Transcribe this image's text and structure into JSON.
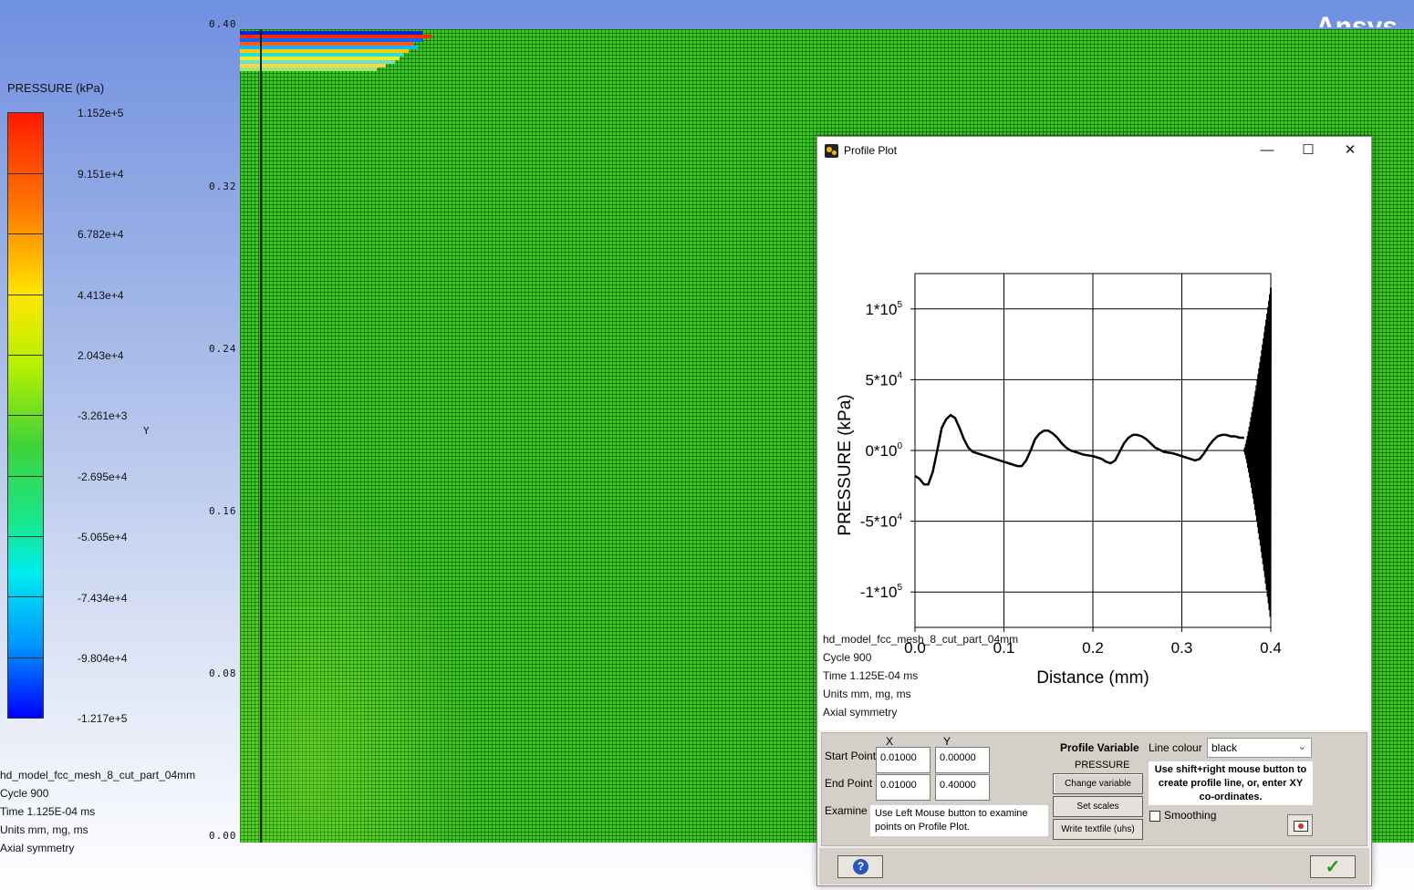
{
  "brand": "Ansys",
  "legend": {
    "title": "PRESSURE (kPa)",
    "labels": [
      "1.152e+5",
      "9.151e+4",
      "6.782e+4",
      "4.413e+4",
      "2.043e+4",
      "-3.261e+3",
      "-2.695e+4",
      "-5.065e+4",
      "-7.434e+4",
      "-9.804e+4",
      "-1.217e+5"
    ]
  },
  "model_info": {
    "name": "hd_model_fcc_mesh_8_cut_part_04mm",
    "cycle": "Cycle 900",
    "time": "Time 1.125E-04 ms",
    "units": "Units mm, mg, ms",
    "symmetry": "Axial symmetry"
  },
  "viewport": {
    "y_axis_name": "Y",
    "y_ticks": [
      "0.40",
      "0.32",
      "0.24",
      "0.16",
      "0.08",
      "0.00"
    ],
    "colors": {
      "mesh_green": "#3cc924"
    }
  },
  "profile_window": {
    "title": "Profile Plot",
    "buttons": {
      "minimize": "—",
      "maximize": "☐",
      "close": "✕"
    },
    "info": {
      "name": "hd_model_fcc_mesh_8_cut_part_04mm",
      "cycle": "Cycle 900",
      "time": "Time 1.125E-04 ms",
      "units": "Units mm, mg, ms",
      "symmetry": "Axial symmetry"
    },
    "controls": {
      "x_header": "X",
      "y_header": "Y",
      "start_label": "Start Point",
      "end_label": "End Point",
      "examine_label": "Examine",
      "start_x": "0.01000",
      "start_y": "0.00000",
      "end_x": "0.01000",
      "end_y": "0.40000",
      "examine_note": "Use Left Mouse button to examine points on Profile Plot.",
      "profile_variable_label": "Profile Variable",
      "profile_variable_value": "PRESSURE",
      "change_variable": "Change variable",
      "set_scales": "Set scales",
      "write_textfile": "Write textfile (uhs)",
      "line_colour_label": "Line colour",
      "line_colour_value": "black",
      "hint": "Use shift+right mouse button to create profile line, or, enter XY co-ordinates.",
      "smoothing_label": "Smoothing",
      "smoothing_checked": false
    },
    "help_label": "?",
    "ok_label": "✓"
  },
  "chart_data": {
    "type": "line",
    "xlabel": "Distance (mm)",
    "ylabel": "PRESSURE  (kPa)",
    "xlim": [
      0.0,
      0.4
    ],
    "ylim": [
      -125000.0,
      125000.0
    ],
    "x_ticks": [
      {
        "value": 0.0,
        "label": "0.0"
      },
      {
        "value": 0.1,
        "label": "0.1"
      },
      {
        "value": 0.2,
        "label": "0.2"
      },
      {
        "value": 0.3,
        "label": "0.3"
      },
      {
        "value": 0.4,
        "label": "0.4"
      }
    ],
    "y_ticks": [
      {
        "value": 100000,
        "base": "1*10",
        "exp": "5"
      },
      {
        "value": 50000,
        "base": "5*10",
        "exp": "4"
      },
      {
        "value": 0,
        "base": "0*10",
        "exp": "0"
      },
      {
        "value": -50000,
        "base": "-5*10",
        "exp": "4"
      },
      {
        "value": -100000,
        "base": "-1*10",
        "exp": "5"
      }
    ],
    "grid": true,
    "line_color": "#000000",
    "series": [
      {
        "x": [
          0.0,
          0.005,
          0.01,
          0.015,
          0.02,
          0.025,
          0.03,
          0.035,
          0.04,
          0.045,
          0.05,
          0.055,
          0.06,
          0.065,
          0.07,
          0.075,
          0.08,
          0.09,
          0.1,
          0.11,
          0.115,
          0.12,
          0.125,
          0.13,
          0.135,
          0.14,
          0.145,
          0.15,
          0.155,
          0.16,
          0.165,
          0.17,
          0.175,
          0.18,
          0.19,
          0.2,
          0.21,
          0.215,
          0.22,
          0.225,
          0.23,
          0.235,
          0.24,
          0.245,
          0.25,
          0.255,
          0.26,
          0.265,
          0.27,
          0.28,
          0.29,
          0.3,
          0.305,
          0.31,
          0.315,
          0.32,
          0.325,
          0.33,
          0.335,
          0.34,
          0.345,
          0.35,
          0.355,
          0.36,
          0.365,
          0.37
        ],
        "y": [
          -18000,
          -20000,
          -24000,
          -24000,
          -15000,
          0,
          16000,
          22000,
          25000,
          23000,
          16000,
          8000,
          2000,
          -1000,
          -2000,
          -3000,
          -4000,
          -6000,
          -8000,
          -10000,
          -11000,
          -11000,
          -7000,
          0,
          8000,
          12000,
          14000,
          14000,
          12000,
          9000,
          5000,
          2000,
          0,
          -1000,
          -3000,
          -4000,
          -6000,
          -8000,
          -9000,
          -7000,
          -1000,
          5000,
          9000,
          11000,
          11000,
          10000,
          8000,
          5000,
          2000,
          -1000,
          -2000,
          -4000,
          -5000,
          -6000,
          -7000,
          -6000,
          -2000,
          3000,
          7000,
          10000,
          11000,
          11000,
          10000,
          10000,
          9000,
          9000
        ]
      }
    ],
    "oscillation_region": {
      "x_start": 0.37,
      "x_end": 0.4,
      "y_min": -120000,
      "y_max": 115000
    }
  }
}
